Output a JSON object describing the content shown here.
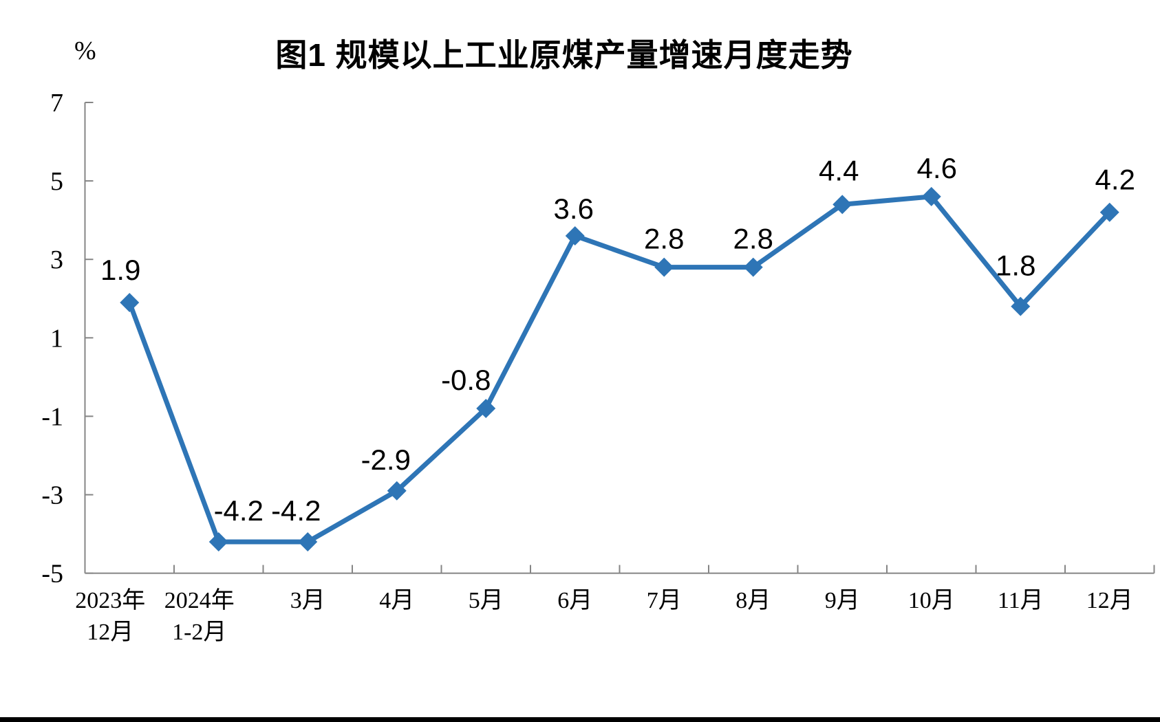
{
  "page": {
    "background": "#ffffff",
    "bottom_bar_color": "#000000"
  },
  "chart_data": {
    "type": "line",
    "title": "图1  规模以上工业原煤产量增速月度走势",
    "unit_label": "%",
    "categories": [
      [
        "2023年",
        "12月"
      ],
      [
        "2024年",
        "1-2月"
      ],
      [
        "3月"
      ],
      [
        "4月"
      ],
      [
        "5月"
      ],
      [
        "6月"
      ],
      [
        "7月"
      ],
      [
        "8月"
      ],
      [
        "9月"
      ],
      [
        "10月"
      ],
      [
        "11月"
      ],
      [
        "12月"
      ]
    ],
    "values": [
      1.9,
      -4.2,
      -4.2,
      -2.9,
      -0.8,
      3.6,
      2.8,
      2.8,
      4.4,
      4.6,
      1.8,
      4.2
    ],
    "data_labels": [
      "1.9",
      "-4.2",
      "-4.2",
      "-2.9",
      "-0.8",
      "3.6",
      "2.8",
      "2.8",
      "4.4",
      "4.6",
      "1.8",
      "4.2"
    ],
    "y_ticks": [
      7,
      5,
      3,
      1,
      -1,
      -3,
      -5
    ],
    "ylim": [
      -5,
      7
    ],
    "xlabel": "",
    "ylabel": "%",
    "grid": false,
    "legend": "none",
    "series_name": "规模以上工业原煤产量增速",
    "series_color": "#2E75B6",
    "axis_color": "#858585",
    "text_color": "#000000",
    "marker": "diamond",
    "layout": {
      "label_dx": [
        -13,
        29,
        -17,
        -16,
        -29,
        -2,
        0,
        0,
        -5,
        8,
        -7,
        8
      ],
      "label_dy": [
        -48,
        -46,
        -46,
        -46,
        -42,
        -40,
        -42,
        -42,
        -50,
        -42,
        -60,
        -48
      ],
      "x_label_dx": [
        -28,
        -28,
        0,
        0,
        0,
        0,
        0,
        0,
        0,
        0,
        0,
        0
      ]
    }
  }
}
